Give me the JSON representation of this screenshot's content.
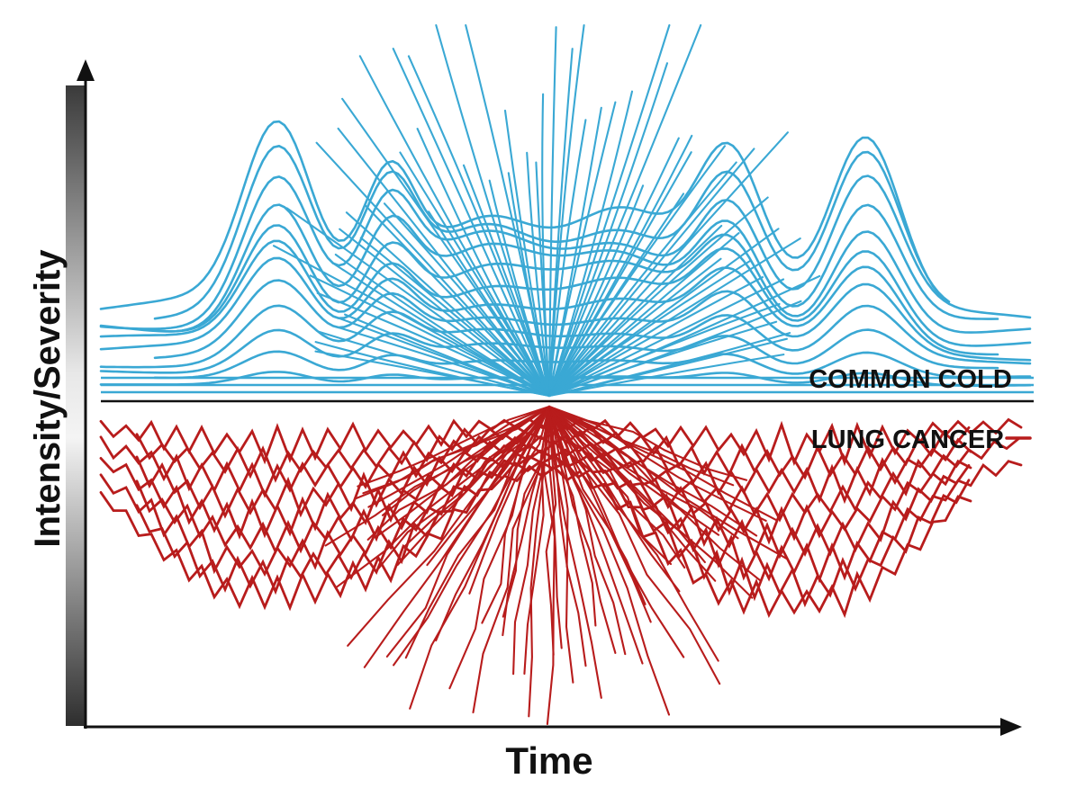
{
  "chart_data": {
    "type": "line",
    "title": "",
    "xlabel": "Time",
    "ylabel": "Intensity/Severity",
    "legend_placement": "right",
    "grid": false,
    "series": [
      {
        "name": "COMMON COLD",
        "color": "#3aa8d4",
        "direction": "up",
        "pattern": "smooth waves peaking twice, with rays bursting from the center"
      },
      {
        "name": "LUNG CANCER",
        "color": "#b81c1c",
        "direction": "down",
        "pattern": "jagged declining lines with rays bursting from the center"
      }
    ]
  }
}
